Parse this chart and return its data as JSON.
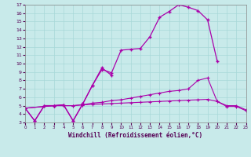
{
  "xlabel": "Windchill (Refroidissement éolien,°C)",
  "background_color": "#c8eaea",
  "grid_color": "#a8d8d8",
  "line_color": "#aa00aa",
  "xlim": [
    0,
    23
  ],
  "ylim": [
    3,
    17
  ],
  "xticks": [
    0,
    1,
    2,
    3,
    4,
    5,
    6,
    7,
    8,
    9,
    10,
    11,
    12,
    13,
    14,
    15,
    16,
    17,
    18,
    19,
    20,
    21,
    22,
    23
  ],
  "yticks": [
    3,
    4,
    5,
    6,
    7,
    8,
    9,
    10,
    11,
    12,
    13,
    14,
    15,
    16,
    17
  ],
  "series1_x": [
    0,
    1,
    2,
    3,
    4,
    5,
    6,
    7,
    8,
    9,
    10,
    11,
    12,
    13,
    14,
    15,
    16,
    17,
    18,
    19,
    20
  ],
  "series1_y": [
    4.7,
    3.2,
    5.0,
    5.0,
    5.1,
    3.2,
    5.2,
    7.4,
    9.3,
    8.9,
    11.6,
    11.7,
    11.8,
    13.2,
    15.5,
    16.2,
    17.0,
    16.7,
    16.3,
    15.2,
    10.3
  ],
  "series2_x": [
    0,
    1,
    2,
    3,
    4,
    5,
    6,
    7,
    8,
    9
  ],
  "series2_y": [
    4.7,
    3.2,
    5.0,
    5.0,
    5.1,
    3.2,
    5.2,
    7.4,
    9.5,
    8.6
  ],
  "series3_x": [
    0,
    3,
    5,
    6,
    7,
    8,
    9,
    10,
    11,
    12,
    13,
    14,
    15,
    16,
    17,
    18,
    19,
    20,
    21,
    22,
    23
  ],
  "series3_y": [
    4.7,
    5.0,
    5.0,
    5.1,
    5.3,
    5.4,
    5.6,
    5.7,
    5.9,
    6.1,
    6.3,
    6.5,
    6.7,
    6.8,
    7.0,
    8.0,
    8.3,
    5.5,
    5.0,
    5.0,
    4.5
  ],
  "series4_x": [
    0,
    3,
    5,
    6,
    7,
    8,
    9,
    10,
    11,
    12,
    13,
    14,
    15,
    16,
    17,
    18,
    19,
    20,
    21,
    22,
    23
  ],
  "series4_y": [
    4.7,
    5.0,
    5.0,
    5.1,
    5.15,
    5.2,
    5.25,
    5.3,
    5.35,
    5.4,
    5.45,
    5.5,
    5.55,
    5.6,
    5.65,
    5.7,
    5.75,
    5.5,
    4.9,
    4.9,
    4.4
  ]
}
